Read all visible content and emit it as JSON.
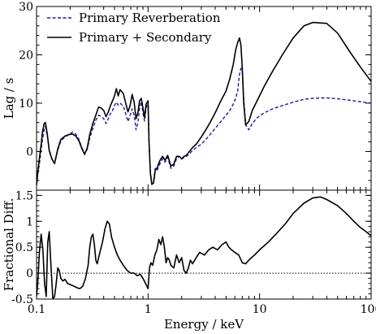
{
  "chart_data": [
    {
      "type": "line",
      "panel": "top",
      "xlabel": "",
      "ylabel": "Lag / s",
      "xscale": "log",
      "xlim": [
        0.1,
        100
      ],
      "ylim": [
        -8,
        30
      ],
      "yticks": [
        0,
        10,
        20,
        30
      ],
      "ytick_labels": [
        "0",
        "10",
        "20",
        "30"
      ],
      "legend": "top-left",
      "grid": false,
      "series": [
        {
          "name": "Primary Reverberation",
          "style": "dashed",
          "color": "#1a1aa6",
          "x": [
            0.1,
            0.103,
            0.107,
            0.11,
            0.113,
            0.117,
            0.12,
            0.125,
            0.13,
            0.137,
            0.145,
            0.155,
            0.165,
            0.18,
            0.195,
            0.21,
            0.225,
            0.24,
            0.255,
            0.27,
            0.285,
            0.3,
            0.32,
            0.34,
            0.36,
            0.38,
            0.4,
            0.42,
            0.44,
            0.46,
            0.48,
            0.5,
            0.52,
            0.54,
            0.56,
            0.6,
            0.63,
            0.66,
            0.69,
            0.72,
            0.75,
            0.78,
            0.81,
            0.84,
            0.87,
            0.9,
            0.93,
            0.96,
            1.0,
            1.02,
            1.05,
            1.08,
            1.12,
            1.16,
            1.2,
            1.28,
            1.35,
            1.42,
            1.5,
            1.6,
            1.7,
            1.8,
            1.9,
            2.0,
            2.1,
            2.2,
            2.35,
            2.5,
            2.7,
            3.0,
            3.3,
            3.6,
            4.0,
            4.5,
            5.0,
            5.4,
            5.8,
            6.1,
            6.35,
            6.6,
            6.8,
            7.0,
            7.2,
            7.5,
            8.0,
            8.6,
            9.5,
            11,
            13,
            16,
            20,
            25,
            30,
            40,
            50,
            65,
            80,
            100
          ],
          "y": [
            -6.8,
            -4.5,
            -2.0,
            0.5,
            2.5,
            4.5,
            5.2,
            3.2,
            0.5,
            -1.5,
            -2.4,
            0.2,
            2.2,
            3.0,
            3.5,
            4.0,
            3.6,
            2.5,
            0.8,
            -0.5,
            0.5,
            2.8,
            4.8,
            6.5,
            7.5,
            7.2,
            6.8,
            5.8,
            6.8,
            7.8,
            8.5,
            9.5,
            10.2,
            9.6,
            10.0,
            9.4,
            7.8,
            6.2,
            7.5,
            8.8,
            7.5,
            4.5,
            6.0,
            9.0,
            10.3,
            8.0,
            6.3,
            9.0,
            10.2,
            1.8,
            -4.2,
            -6.5,
            -6.0,
            -3.5,
            -4.0,
            -2.5,
            -1.5,
            -2.2,
            -1.2,
            -3.5,
            -3.0,
            -1.5,
            -1.0,
            -1.6,
            -1.2,
            -1.0,
            -0.5,
            0.2,
            0.8,
            1.5,
            2.5,
            3.5,
            4.8,
            6.2,
            7.5,
            8.5,
            9.8,
            11.0,
            12.5,
            16.0,
            17.2,
            16.5,
            11.0,
            5.5,
            4.5,
            5.8,
            7.0,
            8.0,
            8.8,
            9.5,
            10.2,
            10.8,
            11.0,
            11.1,
            10.9,
            10.6,
            10.3,
            10.0
          ]
        },
        {
          "name": "Primary + Secondary",
          "style": "solid",
          "color": "#000000",
          "x": [
            0.1,
            0.103,
            0.107,
            0.11,
            0.113,
            0.117,
            0.12,
            0.125,
            0.13,
            0.137,
            0.145,
            0.155,
            0.165,
            0.18,
            0.195,
            0.21,
            0.225,
            0.24,
            0.255,
            0.27,
            0.285,
            0.3,
            0.32,
            0.34,
            0.36,
            0.38,
            0.4,
            0.42,
            0.44,
            0.46,
            0.48,
            0.5,
            0.52,
            0.54,
            0.56,
            0.6,
            0.63,
            0.66,
            0.69,
            0.72,
            0.75,
            0.78,
            0.81,
            0.84,
            0.87,
            0.9,
            0.93,
            0.96,
            1.0,
            1.02,
            1.05,
            1.08,
            1.12,
            1.16,
            1.2,
            1.28,
            1.35,
            1.42,
            1.5,
            1.6,
            1.7,
            1.8,
            1.9,
            2.0,
            2.1,
            2.2,
            2.35,
            2.5,
            2.7,
            3.0,
            3.3,
            3.6,
            4.0,
            4.5,
            5.0,
            5.4,
            5.8,
            6.1,
            6.35,
            6.6,
            6.8,
            7.0,
            7.2,
            7.5,
            8.0,
            8.6,
            9.5,
            11,
            13,
            16,
            20,
            25,
            30,
            40,
            50,
            65,
            80,
            100
          ],
          "y": [
            -7.0,
            -3.8,
            -0.8,
            1.5,
            4.0,
            5.8,
            6.0,
            3.5,
            0.2,
            -1.5,
            -2.5,
            0.5,
            2.5,
            3.2,
            3.5,
            3.6,
            3.2,
            2.2,
            0.6,
            -0.6,
            0.8,
            3.5,
            5.8,
            7.5,
            9.2,
            9.0,
            8.5,
            7.2,
            8.2,
            9.5,
            10.5,
            11.5,
            13.0,
            11.5,
            12.8,
            12.0,
            10.0,
            8.2,
            9.5,
            11.8,
            10.2,
            6.8,
            8.0,
            10.5,
            11.0,
            9.0,
            7.0,
            9.8,
            10.5,
            2.0,
            -4.5,
            -6.8,
            -6.5,
            -3.8,
            -3.5,
            -1.8,
            -1.0,
            -1.8,
            -0.8,
            -3.0,
            -2.6,
            -1.0,
            -1.0,
            -1.5,
            -1.0,
            -0.8,
            0.0,
            0.8,
            1.5,
            3.0,
            4.5,
            6.0,
            8.0,
            10.5,
            12.5,
            15.0,
            18.0,
            21.0,
            22.5,
            23.5,
            22.0,
            17.0,
            10.0,
            5.5,
            6.2,
            8.5,
            10.5,
            13.5,
            16.5,
            20.0,
            23.5,
            26.0,
            26.7,
            26.5,
            24.5,
            20.5,
            17.5,
            14.5
          ]
        }
      ]
    },
    {
      "type": "line",
      "panel": "bottom",
      "xlabel": "Energy  / keV",
      "ylabel": "Fractional Diff.",
      "xscale": "log",
      "xlim": [
        0.1,
        100
      ],
      "ylim": [
        -0.5,
        1.6
      ],
      "xticks": [
        0.1,
        1,
        10,
        100
      ],
      "xtick_labels": [
        "0.1",
        "1",
        "10",
        "100"
      ],
      "yticks": [
        -0.5,
        0,
        0.5,
        1,
        1.5
      ],
      "ytick_labels": [
        "-0.5",
        "0",
        "0.5",
        "1",
        "1.5"
      ],
      "reference_line": {
        "y": 0,
        "style": "dotted"
      },
      "grid": false,
      "series": [
        {
          "name": "",
          "style": "solid",
          "color": "#000000",
          "x": [
            0.1,
            0.103,
            0.106,
            0.11,
            0.114,
            0.118,
            0.122,
            0.126,
            0.13,
            0.135,
            0.14,
            0.145,
            0.15,
            0.155,
            0.16,
            0.165,
            0.172,
            0.18,
            0.19,
            0.2,
            0.215,
            0.23,
            0.245,
            0.26,
            0.275,
            0.29,
            0.3,
            0.31,
            0.32,
            0.33,
            0.34,
            0.35,
            0.37,
            0.39,
            0.41,
            0.43,
            0.45,
            0.47,
            0.5,
            0.53,
            0.56,
            0.6,
            0.65,
            0.7,
            0.75,
            0.8,
            0.85,
            0.9,
            0.95,
            1.0,
            1.03,
            1.06,
            1.1,
            1.15,
            1.2,
            1.25,
            1.3,
            1.35,
            1.4,
            1.45,
            1.5,
            1.55,
            1.6,
            1.7,
            1.8,
            1.9,
            2.0,
            2.1,
            2.2,
            2.3,
            2.4,
            2.5,
            2.7,
            2.9,
            3.2,
            3.5,
            3.8,
            4.2,
            4.6,
            5.0,
            5.3,
            5.6,
            6.0,
            6.5,
            7.0,
            7.5,
            8.0,
            9.0,
            10,
            12,
            14,
            17,
            20,
            25,
            30,
            35,
            40,
            50,
            60,
            70,
            80,
            90,
            100
          ],
          "y": [
            -0.45,
            -0.1,
            0.4,
            0.75,
            0.45,
            -0.2,
            -0.45,
            0.6,
            0.8,
            0.1,
            -0.5,
            -0.45,
            -0.2,
            0.1,
            0.05,
            -0.1,
            -0.15,
            -0.12,
            -0.2,
            -0.22,
            -0.25,
            -0.28,
            -0.3,
            -0.25,
            -0.1,
            0.15,
            0.5,
            0.7,
            0.75,
            0.55,
            0.25,
            0.18,
            0.4,
            0.6,
            0.85,
            1.0,
            0.95,
            0.7,
            0.5,
            0.35,
            0.25,
            0.15,
            0.05,
            0.0,
            0.0,
            -0.05,
            -0.02,
            -0.1,
            -0.2,
            -0.3,
            0.1,
            0.2,
            0.15,
            0.35,
            0.45,
            0.65,
            0.55,
            0.7,
            0.5,
            0.2,
            0.3,
            0.25,
            0.15,
            0.1,
            0.35,
            0.2,
            0.3,
            0.05,
            0.0,
            0.1,
            0.25,
            0.18,
            0.3,
            0.4,
            0.35,
            0.45,
            0.5,
            0.45,
            0.55,
            0.6,
            0.5,
            0.45,
            0.4,
            0.35,
            0.2,
            0.18,
            0.25,
            0.35,
            0.45,
            0.6,
            0.75,
            0.95,
            1.15,
            1.35,
            1.45,
            1.47,
            1.42,
            1.3,
            1.15,
            1.0,
            0.88,
            0.8,
            0.72
          ]
        }
      ]
    }
  ]
}
